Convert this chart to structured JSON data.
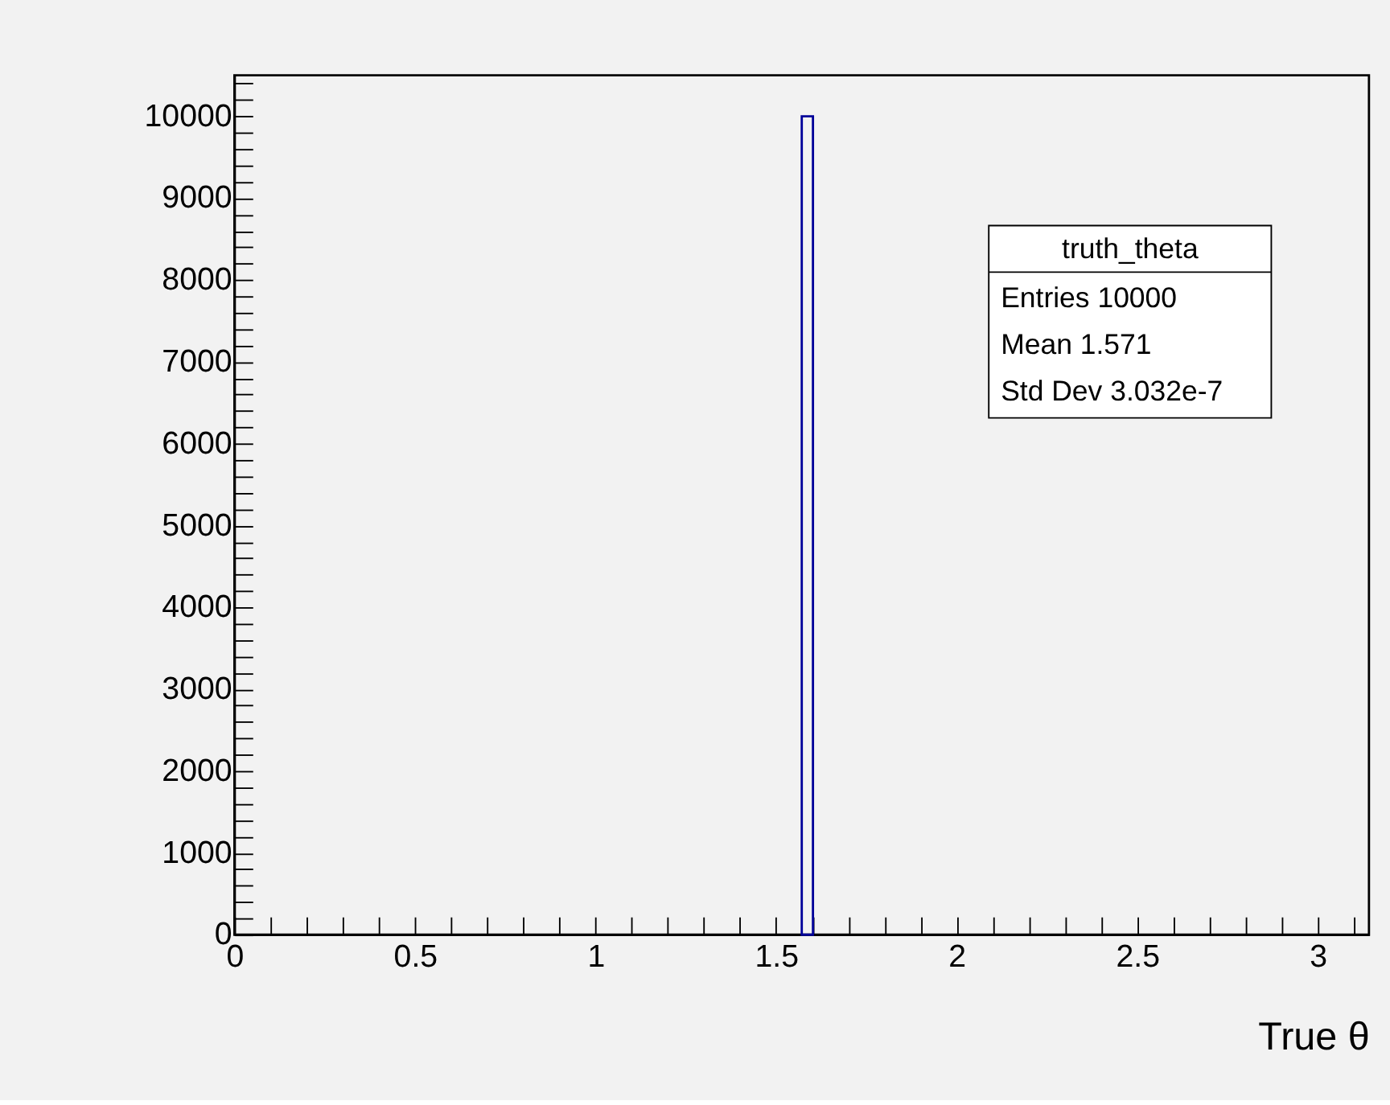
{
  "chart_data": {
    "type": "histogram",
    "bins": [
      1.571,
      1.602
    ],
    "values": [
      10000
    ],
    "color": "#000099",
    "xlabel": "True θ",
    "xlim": [
      0,
      3.1416
    ],
    "ylim": [
      0,
      10500
    ],
    "xticks": [
      0,
      {
        "value": 0.1,
        "label": null
      },
      {
        "value": 0.2,
        "label": null
      },
      {
        "value": 0.3,
        "label": null
      },
      {
        "value": 0.4,
        "label": null
      },
      0.5,
      {
        "value": 0.6,
        "label": null
      },
      {
        "value": 0.7,
        "label": null
      },
      {
        "value": 0.8,
        "label": null
      },
      {
        "value": 0.9,
        "label": null
      },
      1,
      {
        "value": 1.1,
        "label": null
      },
      {
        "value": 1.2,
        "label": null
      },
      {
        "value": 1.3,
        "label": null
      },
      {
        "value": 1.4,
        "label": null
      },
      1.5,
      {
        "value": 1.6,
        "label": null
      },
      {
        "value": 1.7,
        "label": null
      },
      {
        "value": 1.8,
        "label": null
      },
      {
        "value": 1.9,
        "label": null
      },
      2,
      {
        "value": 2.1,
        "label": null
      },
      {
        "value": 2.2,
        "label": null
      },
      {
        "value": 2.3,
        "label": null
      },
      {
        "value": 2.4,
        "label": null
      },
      2.5,
      {
        "value": 2.6,
        "label": null
      },
      {
        "value": 2.7,
        "label": null
      },
      {
        "value": 2.8,
        "label": null
      },
      {
        "value": 2.9,
        "label": null
      },
      3,
      {
        "value": 3.1,
        "label": null
      }
    ],
    "yticks": [
      0,
      {
        "value": 200,
        "label": null
      },
      {
        "value": 400,
        "label": null
      },
      {
        "value": 600,
        "label": null
      },
      {
        "value": 800,
        "label": null
      },
      1000,
      {
        "value": 1200,
        "label": null
      },
      {
        "value": 1400,
        "label": null
      },
      {
        "value": 1600,
        "label": null
      },
      {
        "value": 1800,
        "label": null
      },
      2000,
      {
        "value": 2200,
        "label": null
      },
      {
        "value": 2400,
        "label": null
      },
      {
        "value": 2600,
        "label": null
      },
      {
        "value": 2800,
        "label": null
      },
      3000,
      {
        "value": 3200,
        "label": null
      },
      {
        "value": 3400,
        "label": null
      },
      {
        "value": 3600,
        "label": null
      },
      {
        "value": 3800,
        "label": null
      },
      4000,
      {
        "value": 4200,
        "label": null
      },
      {
        "value": 4400,
        "label": null
      },
      {
        "value": 4600,
        "label": null
      },
      {
        "value": 4800,
        "label": null
      },
      5000,
      {
        "value": 5200,
        "label": null
      },
      {
        "value": 5400,
        "label": null
      },
      {
        "value": 5600,
        "label": null
      },
      {
        "value": 5800,
        "label": null
      },
      6000,
      {
        "value": 6200,
        "label": null
      },
      {
        "value": 6400,
        "label": null
      },
      {
        "value": 6600,
        "label": null
      },
      {
        "value": 6800,
        "label": null
      },
      7000,
      {
        "value": 7200,
        "label": null
      },
      {
        "value": 7400,
        "label": null
      },
      {
        "value": 7600,
        "label": null
      },
      {
        "value": 7800,
        "label": null
      },
      8000,
      {
        "value": 8200,
        "label": null
      },
      {
        "value": 8400,
        "label": null
      },
      {
        "value": 8600,
        "label": null
      },
      {
        "value": 8800,
        "label": null
      },
      9000,
      {
        "value": 9200,
        "label": null
      },
      {
        "value": 9400,
        "label": null
      },
      {
        "value": 9600,
        "label": null
      },
      {
        "value": 9800,
        "label": null
      },
      10000,
      {
        "value": 10200,
        "label": null
      },
      {
        "value": 10400,
        "label": null
      }
    ],
    "annotations": [
      "truth_theta",
      "Entries 10000",
      "Mean 1.571",
      "Std Dev 3.032e-7"
    ]
  }
}
